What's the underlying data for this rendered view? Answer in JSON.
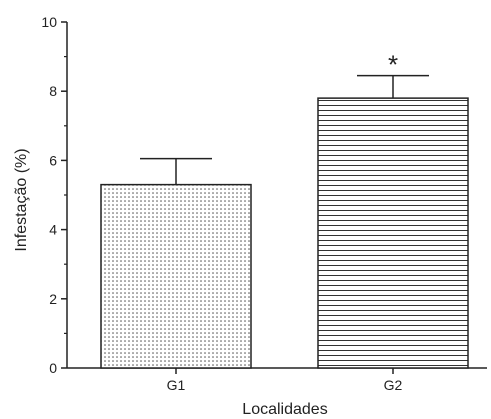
{
  "chart_data": {
    "type": "bar",
    "categories": [
      "G1",
      "G2"
    ],
    "values": [
      5.3,
      7.8
    ],
    "errors": [
      0.75,
      0.65
    ],
    "significance": [
      "",
      "*"
    ],
    "patterns": [
      "dots",
      "horizontal-lines"
    ],
    "xlabel": "Localidades",
    "ylabel": "Infestação (%)",
    "ylim": [
      0,
      10
    ],
    "yticks": [
      0,
      2,
      4,
      6,
      8,
      10
    ],
    "ytick_labels": [
      "0",
      "2",
      "4",
      "6",
      "8",
      "10"
    ],
    "grid": false,
    "colors": {
      "axis": "#222222",
      "bar_fill": "#ffffff",
      "pattern": "#333333"
    }
  }
}
